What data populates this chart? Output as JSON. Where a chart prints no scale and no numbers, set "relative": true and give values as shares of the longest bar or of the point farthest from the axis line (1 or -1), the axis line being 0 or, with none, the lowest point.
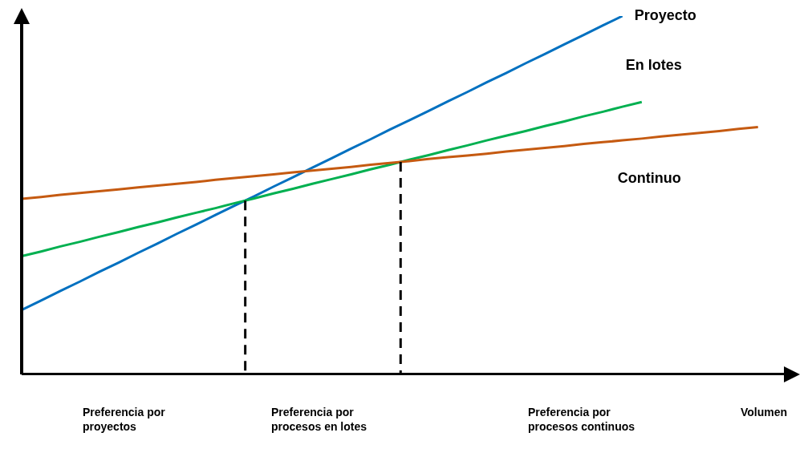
{
  "chart_data": {
    "type": "line",
    "relative": true,
    "xlabel": "Volumen",
    "grid": false,
    "legend": false,
    "marker": "none",
    "categories": [
      null,
      null,
      null,
      null,
      null,
      null,
      null,
      null,
      null,
      null,
      null,
      null,
      null,
      null,
      null,
      null,
      null,
      null,
      null,
      null,
      null,
      null,
      null,
      null,
      null,
      null,
      null,
      null,
      null,
      null,
      null,
      null,
      null,
      null,
      null,
      null,
      null,
      null,
      null,
      null,
      null
    ],
    "series": [
      {
        "name": "Proyecto",
        "color": "#0070c0",
        "values": [
          0.18,
          0.206,
          0.233,
          0.259,
          0.286,
          0.312,
          0.339,
          0.365,
          0.392,
          0.418,
          0.445,
          0.471,
          0.497,
          0.524,
          0.55,
          0.577,
          0.603,
          0.63,
          0.656,
          0.683,
          0.709,
          0.735,
          0.762,
          0.788,
          0.815,
          0.841,
          0.868,
          0.894,
          0.921,
          0.947,
          0.974,
          1.0,
          null,
          null,
          null,
          null,
          null,
          null,
          null,
          null,
          null
        ]
      },
      {
        "name": "En lotes",
        "color": "#00b050",
        "values": [
          0.33,
          0.343,
          0.357,
          0.37,
          0.384,
          0.397,
          0.411,
          0.424,
          0.438,
          0.451,
          0.464,
          0.478,
          0.491,
          0.505,
          0.518,
          0.532,
          0.545,
          0.558,
          0.572,
          0.585,
          0.599,
          0.612,
          0.626,
          0.639,
          0.653,
          0.666,
          0.679,
          0.693,
          0.706,
          0.72,
          0.733,
          0.747,
          0.76,
          null,
          null,
          null,
          null,
          null,
          null,
          null,
          null
        ]
      },
      {
        "name": "Continuo",
        "color": "#c55a11",
        "values": [
          0.49,
          0.495,
          0.501,
          0.506,
          0.511,
          0.516,
          0.522,
          0.527,
          0.532,
          0.537,
          0.543,
          0.548,
          0.553,
          0.558,
          0.564,
          0.569,
          0.574,
          0.579,
          0.585,
          0.59,
          0.595,
          0.601,
          0.606,
          0.611,
          0.616,
          0.622,
          0.627,
          0.632,
          0.637,
          0.643,
          0.648,
          0.653,
          0.658,
          0.664,
          0.669,
          0.674,
          0.679,
          0.685,
          0.69,
          null,
          null
        ]
      }
    ],
    "annotations": [
      "Preferencia por proyectos",
      "Preferencia por procesos en lotes",
      "Preferencia por procesos continuos"
    ]
  }
}
